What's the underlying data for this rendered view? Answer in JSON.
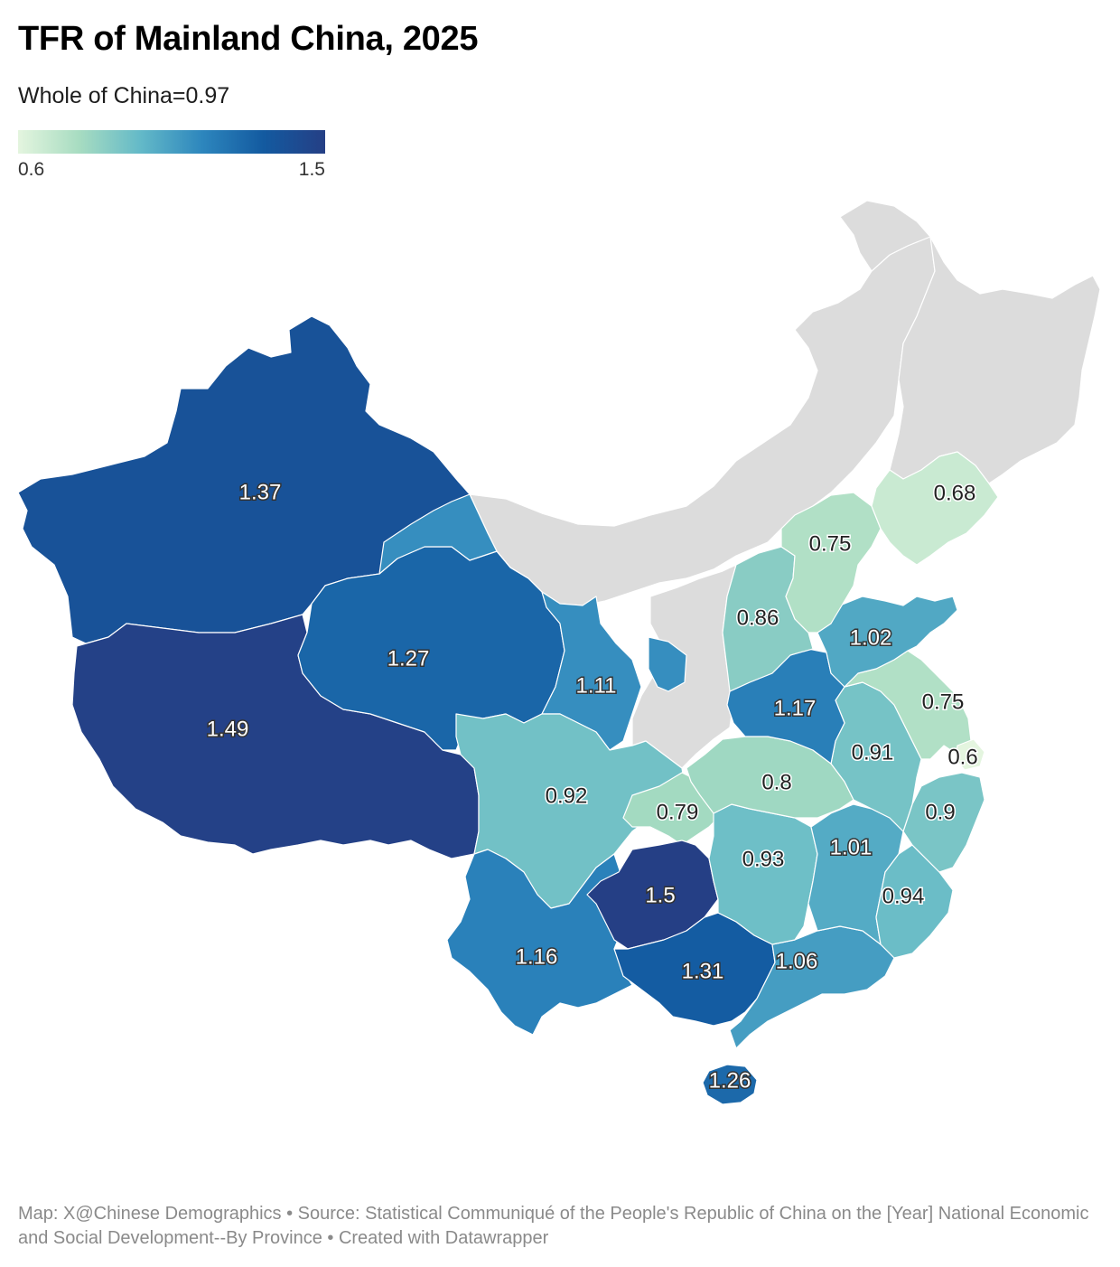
{
  "header": {
    "title": "TFR of Mainland China, 2025",
    "subtitle": "Whole of China=0.97"
  },
  "legend": {
    "min": "0.6",
    "max": "1.5",
    "min_value": 0.6,
    "max_value": 1.5,
    "colors": [
      "#e4f5df",
      "#a7dcc1",
      "#63b9c8",
      "#2d86bd",
      "#135aa0",
      "#253f85"
    ]
  },
  "no_data_color": "#dcdcdc",
  "regions": [
    {
      "id": "xinjiang",
      "value": 1.37,
      "label": "1.37"
    },
    {
      "id": "tibet",
      "value": 1.49,
      "label": "1.49"
    },
    {
      "id": "qinghai",
      "value": 1.27,
      "label": "1.27"
    },
    {
      "id": "gansu",
      "value": 1.11,
      "label": "1.11"
    },
    {
      "id": "ningxia",
      "value": 1.11,
      "label": ""
    },
    {
      "id": "sichuan",
      "value": 0.92,
      "label": "0.92"
    },
    {
      "id": "chongqing",
      "value": 0.79,
      "label": "0.79"
    },
    {
      "id": "yunnan",
      "value": 1.16,
      "label": "1.16"
    },
    {
      "id": "guizhou",
      "value": 1.5,
      "label": "1.5"
    },
    {
      "id": "guangxi",
      "value": 1.31,
      "label": "1.31"
    },
    {
      "id": "guangdong",
      "value": 1.06,
      "label": "1.06"
    },
    {
      "id": "hainan",
      "value": 1.26,
      "label": "1.26"
    },
    {
      "id": "hunan",
      "value": 0.93,
      "label": "0.93"
    },
    {
      "id": "hubei",
      "value": 0.8,
      "label": "0.8"
    },
    {
      "id": "jiangxi",
      "value": 1.01,
      "label": "1.01"
    },
    {
      "id": "fujian",
      "value": 0.94,
      "label": "0.94"
    },
    {
      "id": "zhejiang",
      "value": 0.9,
      "label": "0.9"
    },
    {
      "id": "anhui",
      "value": 0.91,
      "label": "0.91"
    },
    {
      "id": "jiangsu",
      "value": 0.75,
      "label": "0.75"
    },
    {
      "id": "shanghai",
      "value": 0.6,
      "label": "0.6"
    },
    {
      "id": "henan",
      "value": 1.17,
      "label": "1.17"
    },
    {
      "id": "shandong",
      "value": 1.02,
      "label": "1.02"
    },
    {
      "id": "shanxi",
      "value": 0.86,
      "label": "0.86"
    },
    {
      "id": "hebei-beijing-tianjin",
      "value": 0.75,
      "label": "0.75"
    },
    {
      "id": "liaoning",
      "value": 0.68,
      "label": "0.68"
    },
    {
      "id": "inner-mongolia",
      "value": null,
      "label": ""
    },
    {
      "id": "heilongjiang-jilin",
      "value": null,
      "label": ""
    },
    {
      "id": "shaanxi",
      "value": null,
      "label": ""
    }
  ],
  "footer": {
    "text": "Map: X@Chinese Demographics • Source: Statistical Communiqué of the People's Republic of China on the [Year] National Economic and Social Development--By Province • Created with Datawrapper"
  }
}
